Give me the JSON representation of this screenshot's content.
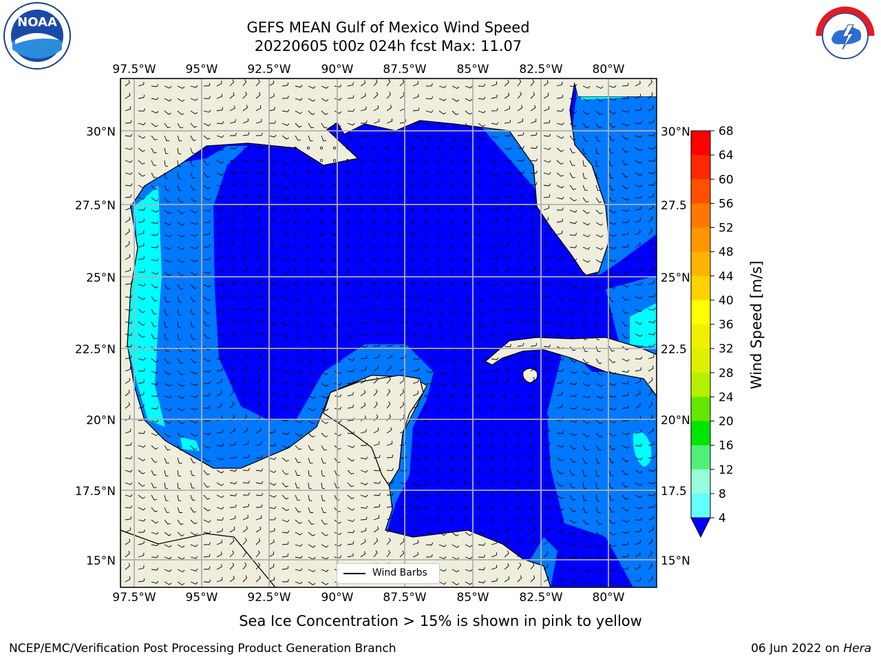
{
  "title_line1": "GEFS MEAN Gulf of Mexico Wind Speed",
  "title_line2": "20220605 t00z 024h fcst   Max: 11.07",
  "lon_labels": [
    "97.5°W",
    "95°W",
    "92.5°W",
    "90°W",
    "87.5°W",
    "85°W",
    "82.5°W",
    "80°W"
  ],
  "lat_labels_left": [
    "30°N",
    "27.5°N",
    "25°N",
    "22.5°N",
    "20°N",
    "17.5°N",
    "15°N"
  ],
  "lat_labels_right": [
    "30°N",
    "27.5",
    "25°N",
    "22.5",
    "20°N",
    "17.5",
    "15°N"
  ],
  "colorbar": {
    "label": "Wind Speed [m/s]",
    "ticks": [
      "68",
      "64",
      "60",
      "56",
      "52",
      "48",
      "44",
      "40",
      "36",
      "32",
      "28",
      "24",
      "20",
      "16",
      "12",
      "8",
      "4"
    ],
    "colors": [
      "#ff0000",
      "#ff2800",
      "#ff5000",
      "#ff7800",
      "#ff9600",
      "#ffb400",
      "#ffd200",
      "#ffeb00",
      "#ffff00",
      "#dcf000",
      "#b4e600",
      "#50d200",
      "#00d200",
      "#00e650",
      "#50fa78",
      "#96ffc8",
      "#64ffe6",
      "#32ffe6",
      "#00ffff",
      "#0096ff",
      "#0000ff"
    ]
  },
  "legend_label": "Wind Barbs",
  "sea_ice_note": "Sea Ice Concentration > 15% is shown in pink to yellow",
  "footer_left": "NCEP/EMC/Verification Post Processing Product Generation Branch",
  "footer_date": "06 Jun 2022 on",
  "footer_host": "Hera",
  "logo_left": "NOAA",
  "logo_right": "NATIONAL WEATHER SERVICE",
  "colors": {
    "land": "#efeedd",
    "ocean_dark": "#0000ff",
    "ocean_mid": "#0078ff",
    "ocean_light": "#00ffff",
    "grid": "#b0b0b0"
  }
}
